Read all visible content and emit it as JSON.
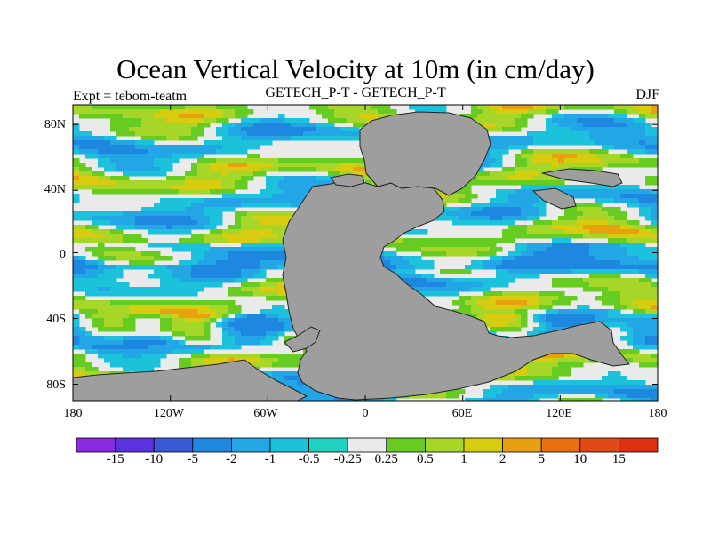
{
  "header": {
    "title": "Ocean Vertical Velocity at 10m (in cm/day)",
    "left": "Expt = tebom-teatm",
    "center": "GETECH_P-T - GETECH_P-T",
    "right": "DJF"
  },
  "axes": {
    "y_ticks": [
      "80N",
      "40N",
      "0",
      "40S",
      "80S"
    ],
    "x_ticks": [
      "180",
      "120W",
      "60W",
      "0",
      "60E",
      "120E",
      "180"
    ]
  },
  "colorbar": {
    "labels": [
      "-15",
      "-10",
      "-5",
      "-2",
      "-1",
      "-0.5",
      "-0.25",
      "0.25",
      "0.5",
      "1",
      "2",
      "5",
      "10",
      "15"
    ],
    "colors": [
      "#8a2be2",
      "#5a32e0",
      "#3a5ad8",
      "#1e88e0",
      "#22a6e6",
      "#1cc2dc",
      "#20d0c0",
      "#eaeaea",
      "#66cc22",
      "#a6d628",
      "#d8cc10",
      "#e8a010",
      "#e87010",
      "#e04a18",
      "#dc3010"
    ]
  },
  "map_colors": {
    "land": "#9e9e9e",
    "coast": "#222222"
  }
}
